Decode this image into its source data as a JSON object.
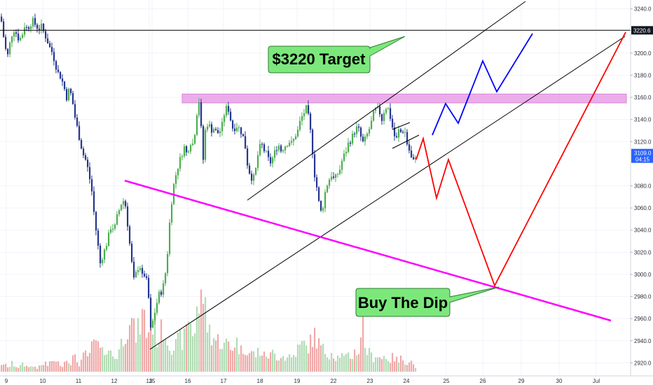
{
  "chart_data": {
    "type": "candlestick",
    "colors": {
      "bull": "#4caf50",
      "bear": "#26368f",
      "vol_up": "#a5d6a7",
      "vol_down": "#ef9a9a",
      "resistance_zone": "#e8a0e8",
      "trendline_magenta": "#ff00ff",
      "projection_red": "#ff0000",
      "projection_blue": "#0000ff",
      "callout_fill": "#7ce87c",
      "current_price_label": "#2962ff",
      "target_label": "#131722"
    },
    "ylim": [
      2912,
      3248
    ],
    "y_ticks": [
      "3240.0",
      "3200.0",
      "3180.0",
      "3160.0",
      "3140.0",
      "3120.0",
      "3080.0",
      "3060.0",
      "3040.0",
      "3020.0",
      "3000.0",
      "2980.0",
      "2960.0",
      "2940.0",
      "2920.0"
    ],
    "x_ticks": [
      "9",
      "10",
      "11",
      "12",
      "13",
      "15",
      "16",
      "17",
      "18",
      "19",
      "22",
      "23",
      "24",
      "25",
      "26",
      "29",
      "30",
      "Jul"
    ],
    "target_level": 3220.6,
    "target_label": "3220.6",
    "current_price": "3109.0",
    "countdown": "04:15",
    "resistance_zone": [
      3155,
      3163
    ],
    "callouts": {
      "target": "$3220 Target",
      "dip": "Buy The Dip"
    },
    "price_path": [
      [
        0,
        3233
      ],
      [
        3,
        3220
      ],
      [
        6,
        3205
      ],
      [
        10,
        3198
      ],
      [
        14,
        3212
      ],
      [
        18,
        3222
      ],
      [
        22,
        3218
      ],
      [
        26,
        3212
      ],
      [
        30,
        3215
      ],
      [
        34,
        3225
      ],
      [
        38,
        3222
      ],
      [
        42,
        3226
      ],
      [
        46,
        3229
      ],
      [
        50,
        3225
      ],
      [
        54,
        3222
      ],
      [
        58,
        3224
      ],
      [
        62,
        3218
      ],
      [
        66,
        3212
      ],
      [
        70,
        3205
      ],
      [
        74,
        3200
      ],
      [
        78,
        3190
      ],
      [
        82,
        3182
      ],
      [
        86,
        3178
      ],
      [
        90,
        3170
      ],
      [
        94,
        3160
      ],
      [
        98,
        3168
      ],
      [
        102,
        3158
      ],
      [
        106,
        3142
      ],
      [
        110,
        3130
      ],
      [
        114,
        3118
      ],
      [
        118,
        3108
      ],
      [
        122,
        3102
      ],
      [
        126,
        3090
      ],
      [
        130,
        3075
      ],
      [
        134,
        3050
      ],
      [
        138,
        3030
      ],
      [
        142,
        3010
      ],
      [
        146,
        3018
      ],
      [
        150,
        3025
      ],
      [
        154,
        3035
      ],
      [
        158,
        3045
      ],
      [
        162,
        3040
      ],
      [
        166,
        3052
      ],
      [
        170,
        3060
      ],
      [
        174,
        3068
      ],
      [
        178,
        3062
      ],
      [
        182,
        3040
      ],
      [
        186,
        3015
      ],
      [
        190,
        2995
      ],
      [
        194,
        3002
      ],
      [
        198,
        3010
      ],
      [
        202,
        2998
      ],
      [
        206,
        3000
      ],
      [
        210,
        2988
      ],
      [
        214,
        2950
      ],
      [
        218,
        2960
      ],
      [
        222,
        2972
      ],
      [
        226,
        2982
      ],
      [
        230,
        2985
      ],
      [
        234,
        2995
      ],
      [
        238,
        3020
      ],
      [
        242,
        3055
      ],
      [
        246,
        3078
      ],
      [
        250,
        3090
      ],
      [
        254,
        3100
      ],
      [
        258,
        3108
      ],
      [
        262,
        3115
      ],
      [
        266,
        3108
      ],
      [
        270,
        3120
      ],
      [
        274,
        3118
      ],
      [
        278,
        3132
      ],
      [
        282,
        3160
      ],
      [
        285,
        3150
      ],
      [
        288,
        3095
      ],
      [
        292,
        3130
      ],
      [
        296,
        3138
      ],
      [
        300,
        3130
      ],
      [
        304,
        3132
      ],
      [
        308,
        3128
      ],
      [
        312,
        3128
      ],
      [
        316,
        3135
      ],
      [
        320,
        3148
      ],
      [
        324,
        3152
      ],
      [
        328,
        3140
      ],
      [
        332,
        3130
      ],
      [
        336,
        3135
      ],
      [
        340,
        3132
      ],
      [
        344,
        3128
      ],
      [
        348,
        3120
      ],
      [
        352,
        3100
      ],
      [
        356,
        3090
      ],
      [
        360,
        3085
      ],
      [
        364,
        3095
      ],
      [
        368,
        3112
      ],
      [
        372,
        3118
      ],
      [
        376,
        3112
      ],
      [
        380,
        3108
      ],
      [
        384,
        3100
      ],
      [
        388,
        3105
      ],
      [
        392,
        3112
      ],
      [
        396,
        3118
      ],
      [
        400,
        3112
      ],
      [
        404,
        3115
      ],
      [
        408,
        3118
      ],
      [
        412,
        3120
      ],
      [
        416,
        3118
      ],
      [
        420,
        3125
      ],
      [
        424,
        3130
      ],
      [
        428,
        3140
      ],
      [
        432,
        3145
      ],
      [
        436,
        3150
      ],
      [
        440,
        3140
      ],
      [
        444,
        3118
      ],
      [
        448,
        3090
      ],
      [
        452,
        3075
      ],
      [
        456,
        3055
      ],
      [
        460,
        3062
      ],
      [
        464,
        3078
      ],
      [
        468,
        3085
      ],
      [
        472,
        3090
      ],
      [
        476,
        3085
      ],
      [
        480,
        3090
      ],
      [
        484,
        3095
      ],
      [
        488,
        3105
      ],
      [
        492,
        3110
      ],
      [
        496,
        3118
      ],
      [
        500,
        3122
      ],
      [
        504,
        3128
      ],
      [
        508,
        3132
      ],
      [
        512,
        3130
      ],
      [
        516,
        3118
      ],
      [
        520,
        3122
      ],
      [
        524,
        3128
      ],
      [
        528,
        3135
      ],
      [
        532,
        3145
      ],
      [
        536,
        3150
      ],
      [
        540,
        3148
      ],
      [
        544,
        3140
      ],
      [
        548,
        3150
      ],
      [
        552,
        3152
      ],
      [
        556,
        3142
      ],
      [
        560,
        3130
      ],
      [
        564,
        3120
      ],
      [
        568,
        3130
      ],
      [
        572,
        3128
      ],
      [
        576,
        3132
      ],
      [
        580,
        3118
      ],
      [
        584,
        3110
      ],
      [
        588,
        3100
      ],
      [
        592,
        3108
      ]
    ],
    "volume_path": [
      [
        0,
        14
      ],
      [
        4,
        9
      ],
      [
        8,
        11
      ],
      [
        12,
        6
      ],
      [
        16,
        13
      ],
      [
        20,
        10
      ],
      [
        24,
        7
      ],
      [
        28,
        9
      ],
      [
        32,
        12
      ],
      [
        36,
        8
      ],
      [
        40,
        10
      ],
      [
        44,
        7
      ],
      [
        48,
        9
      ],
      [
        52,
        6
      ],
      [
        56,
        8
      ],
      [
        60,
        11
      ],
      [
        64,
        14
      ],
      [
        68,
        9
      ],
      [
        72,
        16
      ],
      [
        76,
        20
      ],
      [
        80,
        12
      ],
      [
        84,
        15
      ],
      [
        88,
        10
      ],
      [
        92,
        18
      ],
      [
        96,
        22
      ],
      [
        100,
        14
      ],
      [
        104,
        25
      ],
      [
        108,
        18
      ],
      [
        112,
        12
      ],
      [
        116,
        20
      ],
      [
        120,
        28
      ],
      [
        124,
        22
      ],
      [
        128,
        35
      ],
      [
        132,
        40
      ],
      [
        136,
        48
      ],
      [
        140,
        38
      ],
      [
        144,
        28
      ],
      [
        148,
        34
      ],
      [
        152,
        42
      ],
      [
        156,
        30
      ],
      [
        160,
        26
      ],
      [
        164,
        20
      ],
      [
        168,
        32
      ],
      [
        172,
        45
      ],
      [
        176,
        58
      ],
      [
        180,
        70
      ],
      [
        184,
        90
      ],
      [
        188,
        75
      ],
      [
        192,
        55
      ],
      [
        196,
        65
      ],
      [
        200,
        80
      ],
      [
        204,
        95
      ],
      [
        208,
        60
      ],
      [
        212,
        70
      ],
      [
        216,
        82
      ],
      [
        220,
        64
      ],
      [
        224,
        50
      ],
      [
        228,
        60
      ],
      [
        232,
        72
      ],
      [
        236,
        55
      ],
      [
        240,
        48
      ],
      [
        244,
        40
      ],
      [
        248,
        38
      ],
      [
        252,
        45
      ],
      [
        256,
        52
      ],
      [
        260,
        48
      ],
      [
        264,
        58
      ],
      [
        268,
        90
      ],
      [
        272,
        70
      ],
      [
        276,
        55
      ],
      [
        280,
        110
      ],
      [
        284,
        85
      ],
      [
        288,
        140
      ],
      [
        292,
        95
      ],
      [
        296,
        70
      ],
      [
        300,
        60
      ],
      [
        304,
        55
      ],
      [
        308,
        48
      ],
      [
        312,
        52
      ],
      [
        316,
        44
      ],
      [
        320,
        40
      ],
      [
        324,
        48
      ],
      [
        328,
        36
      ],
      [
        332,
        42
      ],
      [
        336,
        50
      ],
      [
        340,
        38
      ],
      [
        344,
        32
      ],
      [
        348,
        40
      ],
      [
        352,
        35
      ],
      [
        356,
        28
      ],
      [
        360,
        30
      ],
      [
        364,
        26
      ],
      [
        368,
        34
      ],
      [
        372,
        30
      ],
      [
        376,
        25
      ],
      [
        380,
        28
      ],
      [
        384,
        24
      ],
      [
        388,
        30
      ],
      [
        392,
        26
      ],
      [
        396,
        22
      ],
      [
        400,
        28
      ],
      [
        404,
        24
      ],
      [
        408,
        20
      ],
      [
        412,
        26
      ],
      [
        416,
        22
      ],
      [
        420,
        30
      ],
      [
        424,
        36
      ],
      [
        428,
        40
      ],
      [
        432,
        45
      ],
      [
        436,
        38
      ],
      [
        440,
        42
      ],
      [
        444,
        50
      ],
      [
        448,
        58
      ],
      [
        452,
        48
      ],
      [
        456,
        40
      ],
      [
        460,
        35
      ],
      [
        464,
        30
      ],
      [
        468,
        28
      ],
      [
        472,
        32
      ],
      [
        476,
        26
      ],
      [
        480,
        22
      ],
      [
        484,
        28
      ],
      [
        488,
        24
      ],
      [
        492,
        20
      ],
      [
        496,
        26
      ],
      [
        500,
        22
      ],
      [
        504,
        30
      ],
      [
        508,
        34
      ],
      [
        512,
        28
      ],
      [
        516,
        98
      ],
      [
        520,
        40
      ],
      [
        524,
        32
      ],
      [
        528,
        26
      ],
      [
        532,
        22
      ],
      [
        536,
        28
      ],
      [
        540,
        24
      ],
      [
        544,
        20
      ],
      [
        548,
        26
      ],
      [
        552,
        22
      ],
      [
        556,
        18
      ],
      [
        560,
        24
      ],
      [
        564,
        20
      ],
      [
        568,
        16
      ],
      [
        572,
        22
      ],
      [
        576,
        18
      ],
      [
        580,
        14
      ],
      [
        584,
        20
      ],
      [
        588,
        12
      ],
      [
        592,
        8
      ]
    ]
  }
}
